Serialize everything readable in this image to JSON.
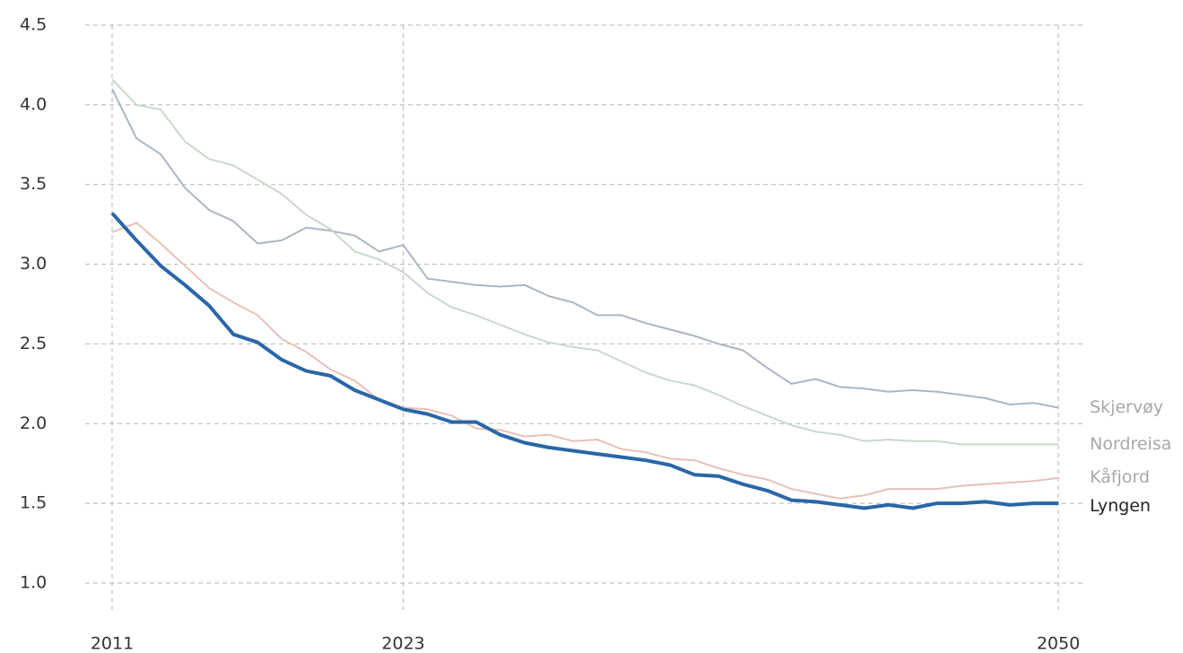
{
  "chart_data": {
    "type": "line",
    "x": [
      2011,
      2012,
      2013,
      2014,
      2015,
      2016,
      2017,
      2018,
      2019,
      2020,
      2021,
      2022,
      2023,
      2024,
      2025,
      2026,
      2027,
      2028,
      2029,
      2030,
      2031,
      2032,
      2033,
      2034,
      2035,
      2036,
      2037,
      2038,
      2039,
      2040,
      2041,
      2042,
      2043,
      2044,
      2045,
      2046,
      2047,
      2048,
      2049,
      2050
    ],
    "series": [
      {
        "name": "Skjervøy",
        "color": "#a9b6c4",
        "values": [
          4.1,
          3.79,
          3.69,
          3.48,
          3.34,
          3.27,
          3.13,
          3.15,
          3.23,
          3.21,
          3.18,
          3.08,
          3.12,
          2.91,
          2.89,
          2.87,
          2.86,
          2.87,
          2.8,
          2.76,
          2.68,
          2.68,
          2.63,
          2.59,
          2.55,
          2.5,
          2.46,
          2.35,
          2.25,
          2.28,
          2.23,
          2.22,
          2.2,
          2.21,
          2.2,
          2.18,
          2.16,
          2.12,
          2.13,
          2.1
        ]
      },
      {
        "name": "Nordreisa",
        "color": "#c8d9c9",
        "values": [
          4.16,
          4.0,
          3.97,
          3.77,
          3.66,
          3.62,
          3.53,
          3.44,
          3.31,
          3.22,
          3.08,
          3.03,
          2.95,
          2.82,
          2.73,
          2.68,
          2.62,
          2.56,
          2.51,
          2.48,
          2.46,
          2.39,
          2.32,
          2.27,
          2.24,
          2.18,
          2.11,
          2.05,
          1.99,
          1.95,
          1.93,
          1.89,
          1.9,
          1.89,
          1.89,
          1.87,
          1.87,
          1.87,
          1.87,
          1.87
        ]
      },
      {
        "name": "Kåfjord",
        "color": "#e8c1b5",
        "values": [
          3.2,
          3.26,
          3.13,
          2.99,
          2.85,
          2.76,
          2.68,
          2.53,
          2.45,
          2.34,
          2.27,
          2.15,
          2.1,
          2.09,
          2.05,
          1.97,
          1.96,
          1.92,
          1.93,
          1.89,
          1.9,
          1.84,
          1.82,
          1.78,
          1.77,
          1.72,
          1.68,
          1.65,
          1.59,
          1.56,
          1.53,
          1.55,
          1.59,
          1.59,
          1.59,
          1.61,
          1.62,
          1.63,
          1.64,
          1.66
        ]
      },
      {
        "name": "Lyngen",
        "color": "#2a66a8",
        "values": [
          3.32,
          3.15,
          2.99,
          2.87,
          2.74,
          2.56,
          2.51,
          2.4,
          2.33,
          2.3,
          2.21,
          2.15,
          2.09,
          2.06,
          2.01,
          2.01,
          1.93,
          1.88,
          1.85,
          1.83,
          1.81,
          1.79,
          1.77,
          1.74,
          1.68,
          1.67,
          1.62,
          1.58,
          1.52,
          1.51,
          1.49,
          1.47,
          1.49,
          1.47,
          1.5,
          1.5,
          1.51,
          1.49,
          1.5,
          1.5
        ]
      }
    ],
    "xlim": [
      2011,
      2050
    ],
    "xticks": [
      2011,
      2023,
      2050
    ],
    "ylim": [
      1.0,
      4.5
    ],
    "yticks": [
      {
        "value": 1.0,
        "label": "1.0"
      },
      1.5,
      {
        "value": 2.0,
        "label": "2.0"
      },
      2.5,
      {
        "value": 3.0,
        "label": "3.0"
      },
      3.5,
      {
        "value": 4.0,
        "label": "4.0"
      },
      4.5
    ],
    "grid": true
  }
}
